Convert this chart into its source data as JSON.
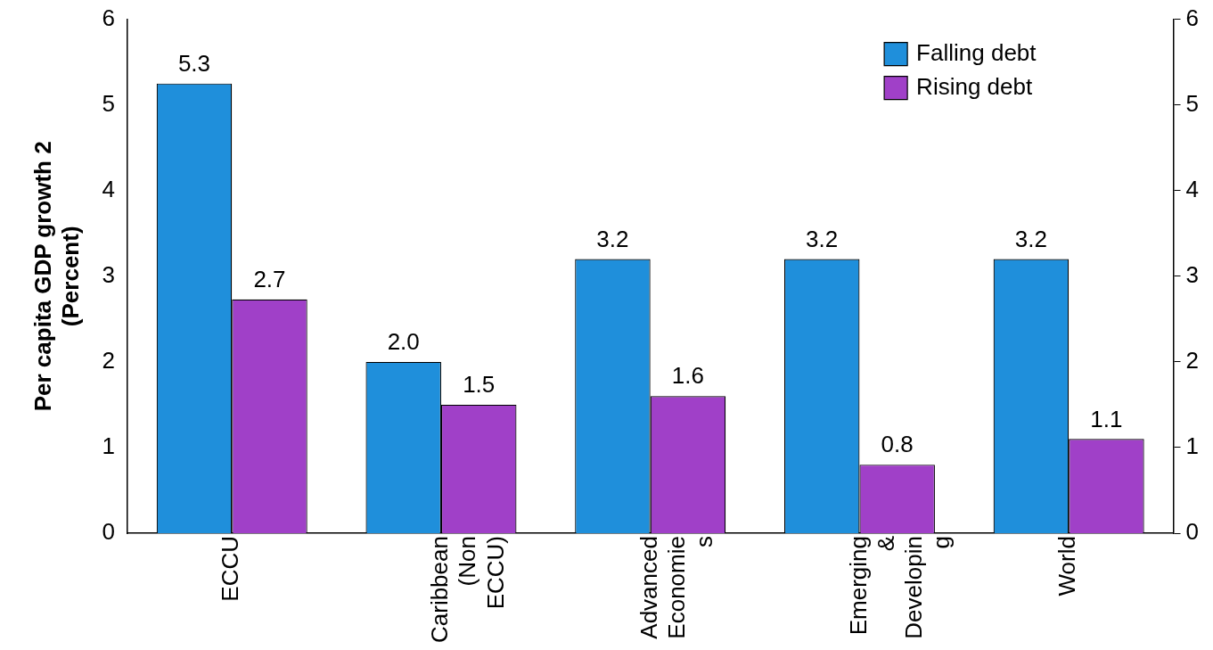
{
  "chart_data": {
    "type": "bar",
    "ylabel": "Per capita GDP growth 2\n(Percent)",
    "categories": [
      "ECCU",
      "Caribbean (Non ECCU)",
      "Advanced Economies",
      "Emerging & Developing",
      "World"
    ],
    "series": [
      {
        "name": "Falling debt",
        "color": "#1f8fdb",
        "values": [
          5.25,
          2.0,
          3.2,
          3.2,
          3.2
        ],
        "value_labels": [
          "5.3",
          "2.0",
          "3.2",
          "3.2",
          "3.2"
        ]
      },
      {
        "name": "Rising debt",
        "color": "#a040c8",
        "values": [
          2.73,
          1.5,
          1.6,
          0.8,
          1.1
        ],
        "value_labels": [
          "2.7",
          "1.5",
          "1.6",
          "0.8",
          "1.1"
        ]
      }
    ],
    "ylim": [
      0,
      6
    ],
    "yticks": [
      0,
      1,
      2,
      3,
      4,
      5,
      6
    ],
    "y2lim": [
      0,
      6
    ],
    "y2ticks": [
      0,
      1,
      2,
      3,
      4,
      5,
      6
    ],
    "grid": false,
    "legend": "top right"
  }
}
